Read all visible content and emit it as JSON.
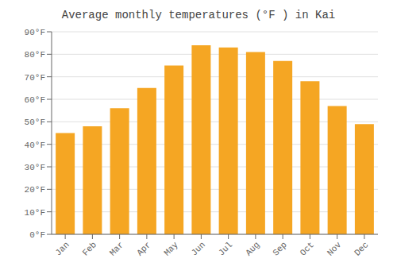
{
  "chart_data": {
    "type": "bar",
    "title": "Average monthly temperatures (°F ) in Kai",
    "categories": [
      "Jan",
      "Feb",
      "Mar",
      "Apr",
      "May",
      "Jun",
      "Jul",
      "Aug",
      "Sep",
      "Oct",
      "Nov",
      "Dec"
    ],
    "values": [
      45,
      48,
      56,
      65,
      75,
      84,
      83,
      81,
      77,
      68,
      57,
      49
    ],
    "color": "#F5A623",
    "ylim": [
      0,
      90
    ],
    "yticks": [
      {
        "value": 0,
        "label": "0°F"
      },
      {
        "value": 10,
        "label": "10°F"
      },
      {
        "value": 20,
        "label": "20°F"
      },
      {
        "value": 30,
        "label": "30°F"
      },
      {
        "value": 40,
        "label": "40°F"
      },
      {
        "value": 50,
        "label": "50°F"
      },
      {
        "value": 60,
        "label": "60°F"
      },
      {
        "value": 70,
        "label": "70°F"
      },
      {
        "value": 80,
        "label": "80°F"
      },
      {
        "value": 90,
        "label": "90°F"
      }
    ],
    "grid": true
  }
}
